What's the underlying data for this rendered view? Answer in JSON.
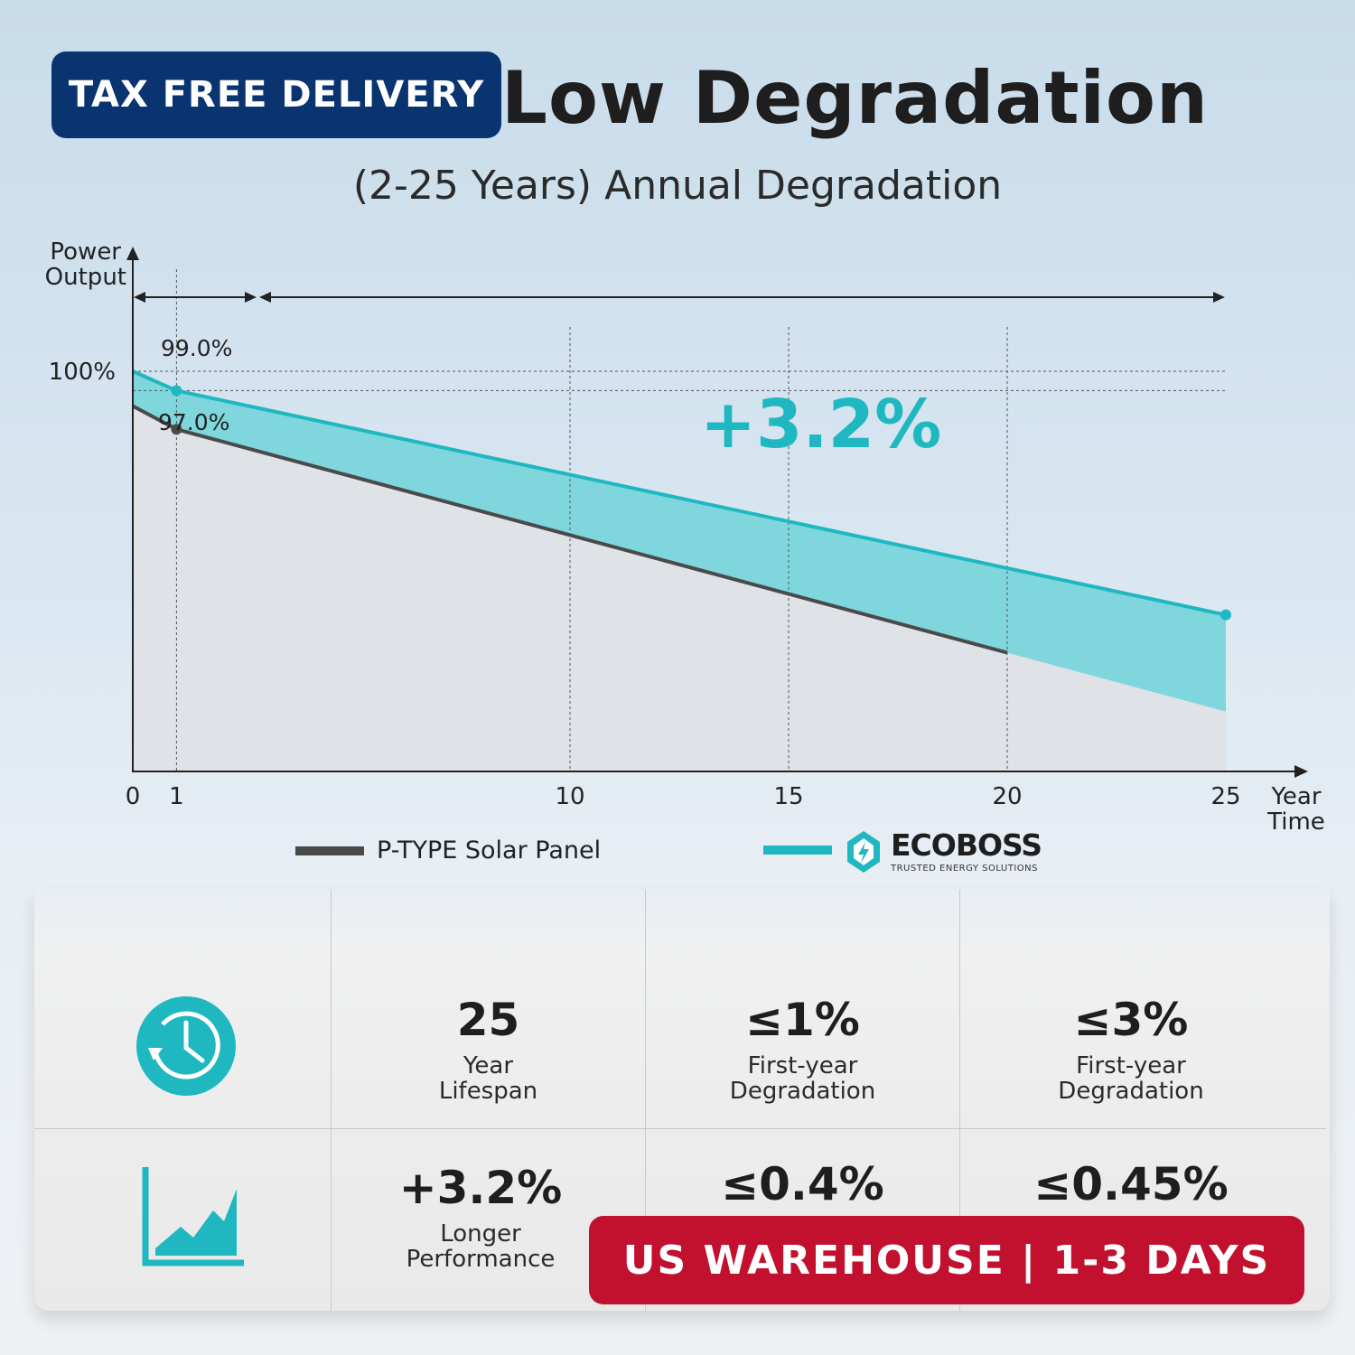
{
  "header": {
    "title": "Low Degradation",
    "subtitle": "(2-25 Years) Annual Degradation"
  },
  "badges": {
    "top": "TAX FREE DELIVERY",
    "bottom": "US WAREHOUSE | 1-3 DAYS"
  },
  "chart_data": {
    "type": "area",
    "ylabel": "Power Output",
    "xlabel": "Year Time",
    "xlabel_lines": [
      "Year",
      "Time"
    ],
    "ylabel_lines": [
      "Power",
      "Output"
    ],
    "x_ticks": [
      "0",
      "1",
      "10",
      "15",
      "20",
      "25"
    ],
    "y_tick_label": "100%",
    "xlim": [
      0,
      25
    ],
    "series": [
      {
        "name": "P-TYPE Solar Panel",
        "color": "#4a4a4a",
        "x": [
          0,
          1,
          25
        ],
        "y": [
          98.2,
          97.0,
          82.4
        ]
      },
      {
        "name": "ECOBOSS",
        "color": "#1fb8c0",
        "x": [
          0,
          1,
          25
        ],
        "y": [
          100,
          99.0,
          87.4
        ]
      }
    ],
    "annotations": {
      "ecoboss_year1": "99.0%",
      "ptype_year1": "97.0%",
      "gain": "+3.2%"
    },
    "grid": "dashed verticals at 1, 10, 15, 20",
    "legend_position": "bottom"
  },
  "legend": {
    "ptype": "P-TYPE Solar Panel",
    "brand_name": "ECOBOSS",
    "brand_tagline": "TRUSTED ENERGY SOLUTIONS"
  },
  "table": {
    "row1": [
      {
        "value": "25",
        "label_lines": [
          "Year",
          "Lifespan"
        ]
      },
      {
        "value": "≤1%",
        "label_lines": [
          "First-year",
          "Degradation"
        ]
      },
      {
        "value": "≤3%",
        "label_lines": [
          "First-year",
          "Degradation"
        ]
      }
    ],
    "row2": [
      {
        "value": "+3.2%",
        "label_lines": [
          "Longer",
          "Performance"
        ]
      },
      {
        "value": "≤0.4%"
      },
      {
        "value": "≤0.45%"
      }
    ],
    "icons": [
      "clock-history-icon",
      "area-chart-icon"
    ]
  },
  "colors": {
    "accent": "#1fb8c0",
    "navy": "#0a3470",
    "red": "#c2102f",
    "ptype": "#4a4a4a"
  }
}
